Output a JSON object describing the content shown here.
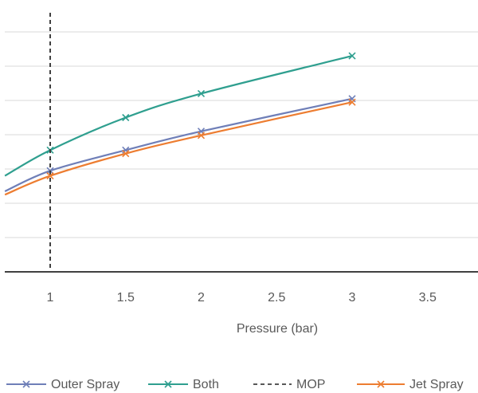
{
  "chart_data": {
    "type": "line",
    "title": "",
    "xlabel": "Pressure (bar)",
    "ylabel": "",
    "xlim": [
      0.7,
      3.85
    ],
    "ylim": [
      0,
      8
    ],
    "x_ticks": [
      1,
      1.5,
      2,
      2.5,
      3,
      3.5
    ],
    "x_tick_labels": [
      "1",
      "1.5",
      "2",
      "2.5",
      "3",
      "3.5"
    ],
    "y_grid_values": [
      1,
      2,
      3,
      4,
      5,
      6,
      7,
      8
    ],
    "grid": true,
    "legend_position": "bottom",
    "series": [
      {
        "name": "Outer Spray",
        "color": "#6f7fb8",
        "marker": "x",
        "x": [
          1,
          1.5,
          2,
          3
        ],
        "y": [
          2.95,
          3.55,
          4.1,
          5.05
        ],
        "curve_start": [
          0.7,
          2.35
        ]
      },
      {
        "name": "Both",
        "color": "#2f9f8f",
        "marker": "x",
        "x": [
          1,
          1.5,
          2,
          3
        ],
        "y": [
          3.55,
          4.5,
          5.2,
          6.3
        ],
        "curve_start": [
          0.7,
          2.8
        ]
      },
      {
        "name": "MOP",
        "color": "#404040",
        "style": "dashed",
        "vertical_at_x": 1
      },
      {
        "name": "Jet Spray",
        "color": "#ed7d31",
        "marker": "x",
        "x": [
          1,
          1.5,
          2,
          3
        ],
        "y": [
          2.8,
          3.45,
          3.98,
          4.95
        ],
        "curve_start": [
          0.7,
          2.25
        ]
      }
    ]
  }
}
